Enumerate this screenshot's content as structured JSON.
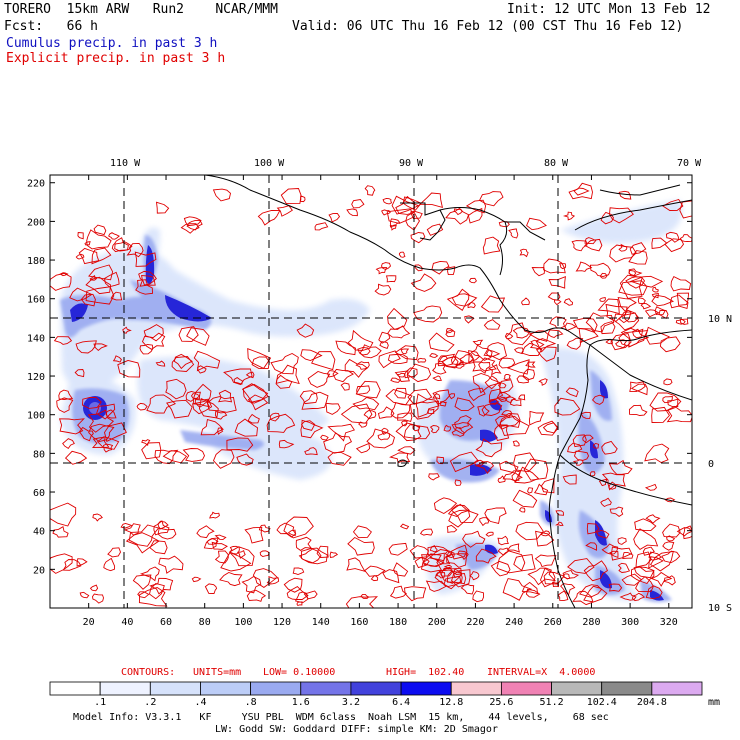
{
  "header": {
    "model": "TORERO  15km ARW   Run2    NCAR/MMM",
    "init": "Init: 12 UTC Mon 13 Feb 12",
    "fcst": "Fcst:   66 h",
    "valid": "Valid: 06 UTC Thu 16 Feb 12 (00 CST Thu 16 Feb 12)",
    "field_cumulus": "Cumulus precip. in past 3 h",
    "field_explicit": "Explicit precip. in past 3 h"
  },
  "map": {
    "x_ticks": [
      "20",
      "40",
      "60",
      "80",
      "100",
      "120",
      "140",
      "160",
      "180",
      "200",
      "220",
      "240",
      "260",
      "280",
      "300",
      "320"
    ],
    "y_ticks": [
      "20",
      "40",
      "60",
      "80",
      "100",
      "120",
      "140",
      "160",
      "180",
      "200",
      "220"
    ],
    "lon_labels": [
      "110 W",
      "100 W",
      "90 W",
      "80 W",
      "70 W"
    ],
    "lat_labels": [
      "10 N",
      "0",
      "10 S"
    ]
  },
  "contours_info": {
    "contours": "CONTOURS:",
    "units": "UNITS=mm",
    "low": "LOW= 0.10000",
    "high": "HIGH=  102.40",
    "interval": "INTERVAL=X  4.0000"
  },
  "colorbar": {
    "unit": "mm",
    "labels": [
      ".1",
      ".2",
      ".4",
      ".8",
      "1.6",
      "3.2",
      "6.4",
      "12.8",
      "25.6",
      "51.2",
      "102.4",
      "204.8"
    ],
    "colors": [
      "#ffffff",
      "#eef2ff",
      "#d6e2fb",
      "#bccdf7",
      "#9aaaf0",
      "#7474e8",
      "#4242dc",
      "#0c0cf0",
      "#f8c8d0",
      "#f082b4",
      "#b8b8b8",
      "#8a8a8a",
      "#dcaaf0"
    ]
  },
  "footer": {
    "line1": "Model Info: V3.3.1   KF     YSU PBL  WDM 6class  Noah LSM  15 km,    44 levels,    68 sec",
    "line2": "LW: Godd SW: Goddard DIFF: simple KM: 2D Smagor"
  }
}
